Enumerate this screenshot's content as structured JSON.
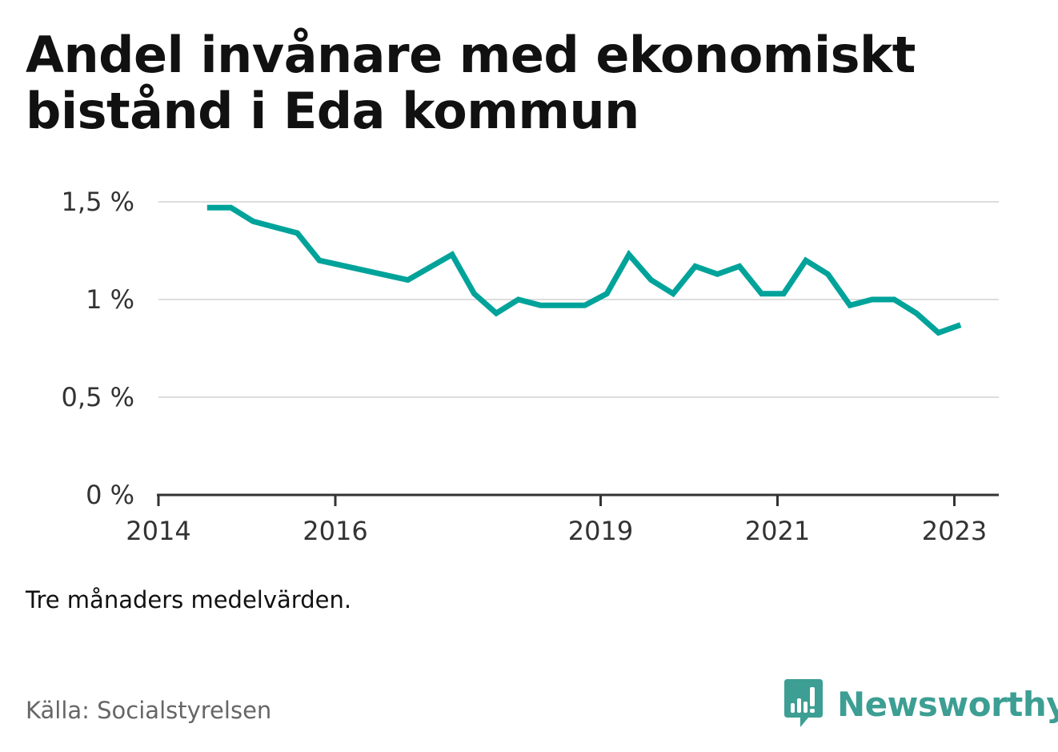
{
  "title": "Andel invånare med ekonomiskt bistånd i Eda kommun",
  "note": "Tre månaders medelvärden.",
  "source": "Källa: Socialstyrelsen",
  "brand": {
    "name": "Newsworthy",
    "color": "#3d9e93",
    "icon": "bar-chart-speech-bubble-icon"
  },
  "chart_data": {
    "type": "line",
    "title": "Andel invånare med ekonomiskt bistånd i Eda kommun",
    "xlabel": "",
    "ylabel": "",
    "ylim": [
      0,
      1.5
    ],
    "xlim": [
      2014,
      2023.25
    ],
    "yticks": [
      {
        "value": 0,
        "label": "0 %"
      },
      {
        "value": 0.5,
        "label": "0,5 %"
      },
      {
        "value": 1,
        "label": "1 %"
      },
      {
        "value": 1.5,
        "label": "1,5 %"
      }
    ],
    "xticks": [
      {
        "value": 2014,
        "label": "2014"
      },
      {
        "value": 2016,
        "label": "2016"
      },
      {
        "value": 2019,
        "label": "2019"
      },
      {
        "value": 2021,
        "label": "2021"
      },
      {
        "value": 2023,
        "label": "2023"
      }
    ],
    "grid": true,
    "legend": "none",
    "series": [
      {
        "color": "#00a39a",
        "points": [
          {
            "x": 2014.55,
            "y": 1.47
          },
          {
            "x": 2014.82,
            "y": 1.47
          },
          {
            "x": 2015.07,
            "y": 1.4
          },
          {
            "x": 2015.32,
            "y": 1.37
          },
          {
            "x": 2015.57,
            "y": 1.34
          },
          {
            "x": 2015.82,
            "y": 1.2
          },
          {
            "x": 2016.82,
            "y": 1.1
          },
          {
            "x": 2017.32,
            "y": 1.23
          },
          {
            "x": 2017.57,
            "y": 1.03
          },
          {
            "x": 2017.82,
            "y": 0.93
          },
          {
            "x": 2018.07,
            "y": 1.0
          },
          {
            "x": 2018.32,
            "y": 0.97
          },
          {
            "x": 2018.82,
            "y": 0.97
          },
          {
            "x": 2019.07,
            "y": 1.03
          },
          {
            "x": 2019.32,
            "y": 1.23
          },
          {
            "x": 2019.57,
            "y": 1.1
          },
          {
            "x": 2019.82,
            "y": 1.03
          },
          {
            "x": 2020.07,
            "y": 1.17
          },
          {
            "x": 2020.32,
            "y": 1.13
          },
          {
            "x": 2020.57,
            "y": 1.17
          },
          {
            "x": 2020.82,
            "y": 1.03
          },
          {
            "x": 2021.07,
            "y": 1.03
          },
          {
            "x": 2021.32,
            "y": 1.2
          },
          {
            "x": 2021.57,
            "y": 1.13
          },
          {
            "x": 2021.82,
            "y": 0.97
          },
          {
            "x": 2022.07,
            "y": 1.0
          },
          {
            "x": 2022.32,
            "y": 1.0
          },
          {
            "x": 2022.57,
            "y": 0.93
          },
          {
            "x": 2022.82,
            "y": 0.83
          },
          {
            "x": 2023.07,
            "y": 0.87
          }
        ]
      }
    ]
  }
}
